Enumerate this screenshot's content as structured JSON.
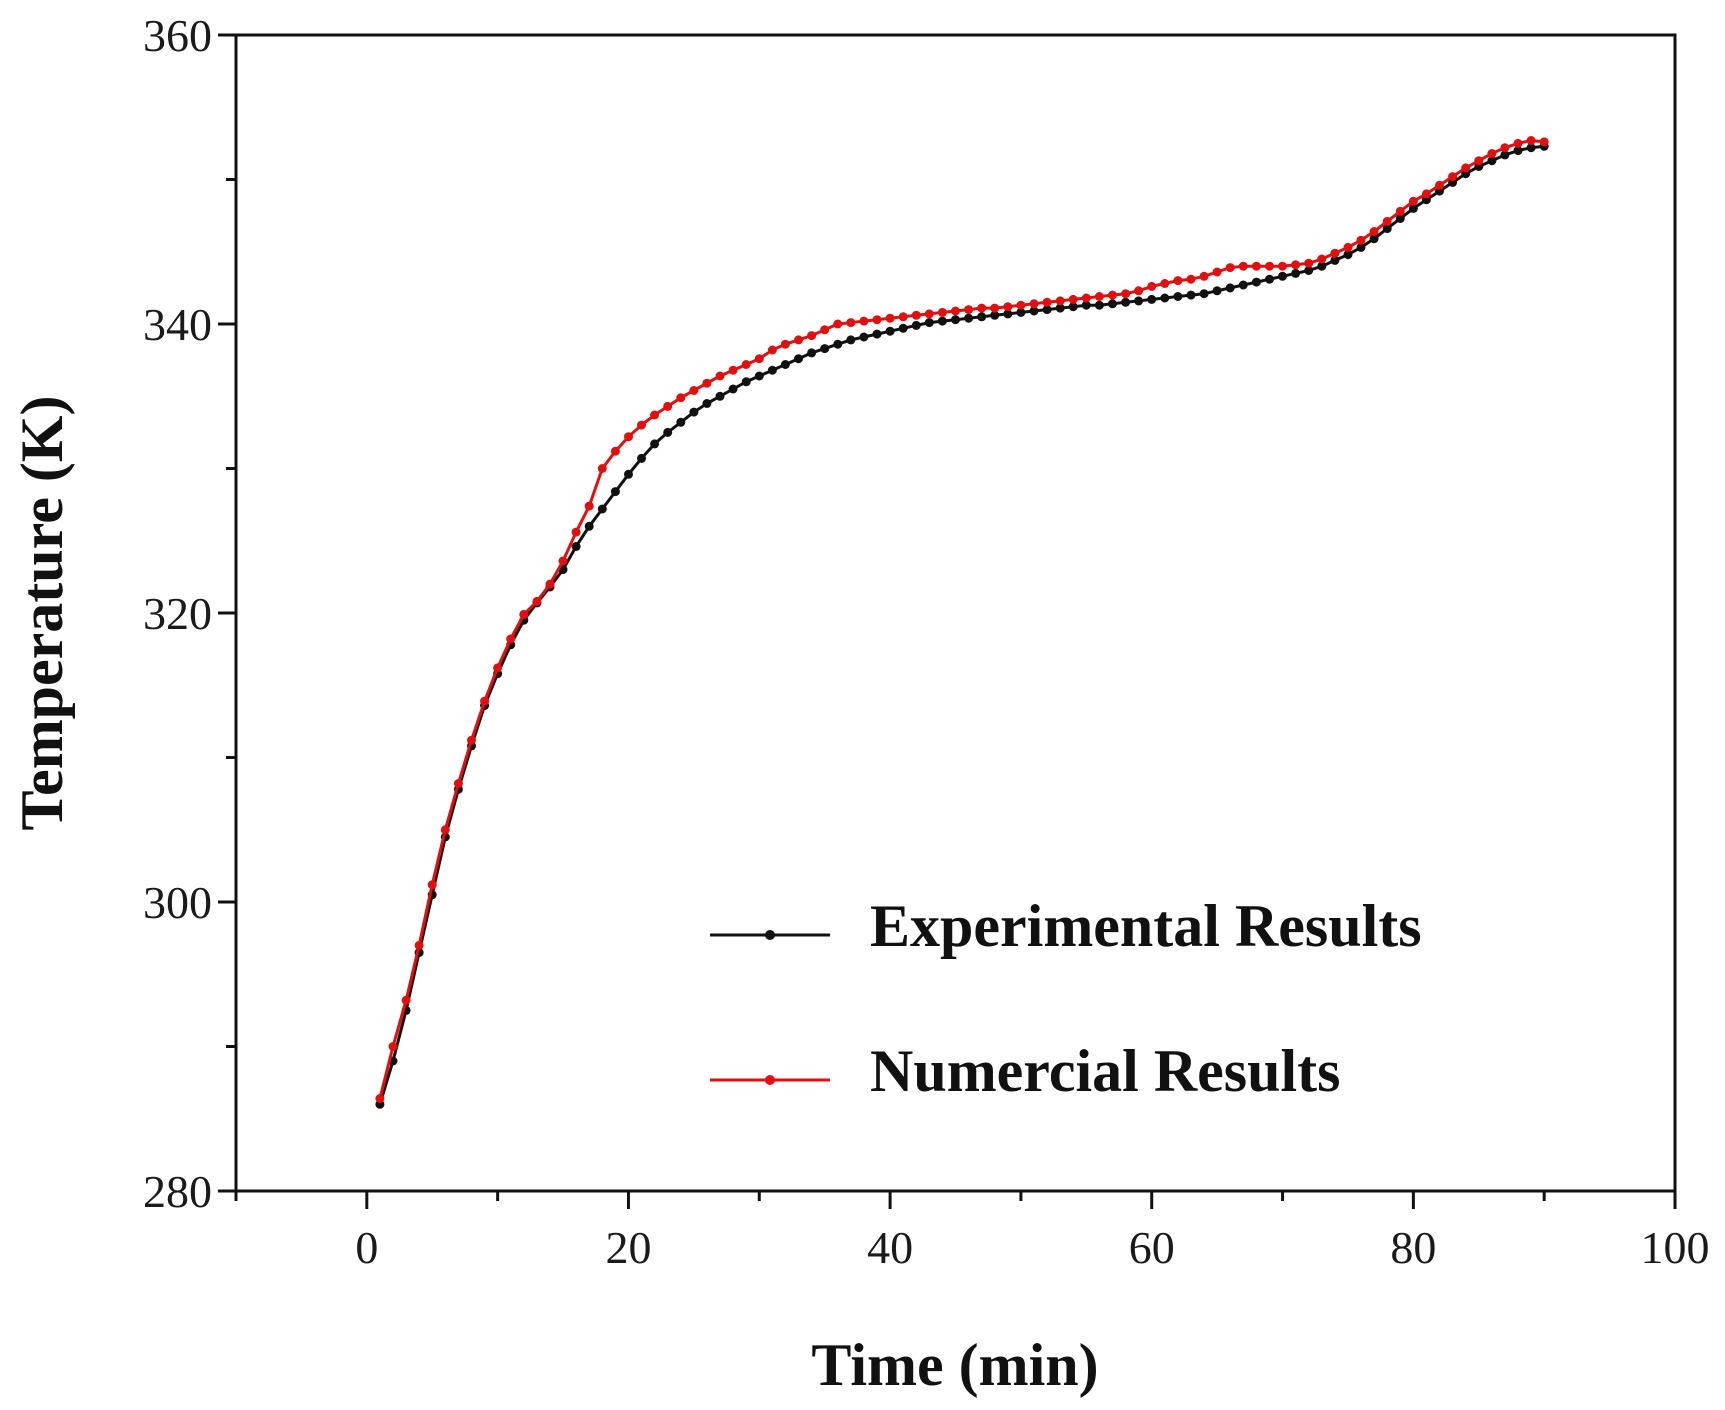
{
  "chart_data": {
    "type": "line",
    "title": "",
    "xlabel": "Time (min)",
    "ylabel": "Temperature (K)",
    "xlim": [
      -10,
      100
    ],
    "ylim": [
      280,
      360
    ],
    "x_ticks": [
      0,
      20,
      40,
      60,
      80,
      100
    ],
    "y_ticks": [
      280,
      300,
      320,
      340,
      360
    ],
    "grid": false,
    "legend_position": "lower-right",
    "series": [
      {
        "name": "Experimental Results",
        "color": "#111111",
        "x": [
          1,
          2,
          3,
          4,
          5,
          6,
          7,
          8,
          9,
          10,
          11,
          12,
          13,
          14,
          15,
          16,
          17,
          18,
          19,
          20,
          21,
          22,
          23,
          24,
          25,
          26,
          27,
          28,
          29,
          30,
          31,
          32,
          33,
          34,
          35,
          36,
          37,
          38,
          39,
          40,
          41,
          42,
          43,
          44,
          45,
          46,
          47,
          48,
          49,
          50,
          51,
          52,
          53,
          54,
          55,
          56,
          57,
          58,
          59,
          60,
          61,
          62,
          63,
          64,
          65,
          66,
          67,
          68,
          69,
          70,
          71,
          72,
          73,
          74,
          75,
          76,
          77,
          78,
          79,
          80,
          81,
          82,
          83,
          84,
          85,
          86,
          87,
          88,
          89,
          90
        ],
        "values": [
          286.0,
          289.0,
          292.5,
          296.5,
          300.5,
          304.5,
          307.8,
          310.8,
          313.6,
          315.8,
          317.8,
          319.5,
          320.7,
          321.8,
          323.0,
          324.6,
          326.0,
          327.2,
          328.4,
          329.6,
          330.7,
          331.7,
          332.5,
          333.2,
          333.9,
          334.5,
          335.0,
          335.5,
          336.0,
          336.4,
          336.8,
          337.2,
          337.6,
          338.0,
          338.3,
          338.6,
          338.9,
          339.1,
          339.3,
          339.5,
          339.7,
          339.9,
          340.1,
          340.2,
          340.3,
          340.4,
          340.5,
          340.6,
          340.7,
          340.8,
          340.9,
          341.0,
          341.1,
          341.2,
          341.3,
          341.3,
          341.4,
          341.5,
          341.6,
          341.7,
          341.8,
          341.9,
          342.0,
          342.1,
          342.3,
          342.5,
          342.7,
          342.9,
          343.1,
          343.3,
          343.5,
          343.7,
          344.0,
          344.4,
          344.8,
          345.3,
          345.9,
          346.6,
          347.3,
          348.0,
          348.6,
          349.2,
          349.8,
          350.4,
          350.9,
          351.3,
          351.7,
          352.0,
          352.2,
          352.3
        ]
      },
      {
        "name": "Numercial Results",
        "color": "#e01010",
        "x": [
          1,
          2,
          3,
          4,
          5,
          6,
          7,
          8,
          9,
          10,
          11,
          12,
          13,
          14,
          15,
          16,
          17,
          18,
          19,
          20,
          21,
          22,
          23,
          24,
          25,
          26,
          27,
          28,
          29,
          30,
          31,
          32,
          33,
          34,
          35,
          36,
          37,
          38,
          39,
          40,
          41,
          42,
          43,
          44,
          45,
          46,
          47,
          48,
          49,
          50,
          51,
          52,
          53,
          54,
          55,
          56,
          57,
          58,
          59,
          60,
          61,
          62,
          63,
          64,
          65,
          66,
          67,
          68,
          69,
          70,
          71,
          72,
          73,
          74,
          75,
          76,
          77,
          78,
          79,
          80,
          81,
          82,
          83,
          84,
          85,
          86,
          87,
          88,
          89,
          90
        ],
        "values": [
          286.4,
          290.0,
          293.2,
          297.0,
          301.2,
          305.0,
          308.2,
          311.2,
          313.9,
          316.2,
          318.2,
          319.9,
          320.8,
          322.0,
          323.6,
          325.6,
          327.4,
          330.0,
          331.2,
          332.2,
          333.0,
          333.7,
          334.3,
          334.9,
          335.4,
          335.9,
          336.4,
          336.8,
          337.2,
          337.6,
          338.2,
          338.6,
          338.9,
          339.2,
          339.6,
          340.0,
          340.1,
          340.2,
          340.3,
          340.4,
          340.5,
          340.6,
          340.7,
          340.8,
          340.9,
          341.0,
          341.1,
          341.1,
          341.2,
          341.3,
          341.4,
          341.5,
          341.6,
          341.7,
          341.8,
          341.9,
          342.0,
          342.1,
          342.3,
          342.6,
          342.8,
          343.0,
          343.1,
          343.3,
          343.6,
          343.9,
          344.0,
          344.0,
          344.0,
          344.0,
          344.1,
          344.2,
          344.5,
          344.9,
          345.3,
          345.8,
          346.4,
          347.1,
          347.8,
          348.5,
          349.0,
          349.6,
          350.2,
          350.8,
          351.3,
          351.8,
          352.2,
          352.5,
          352.7,
          352.6
        ]
      }
    ]
  }
}
